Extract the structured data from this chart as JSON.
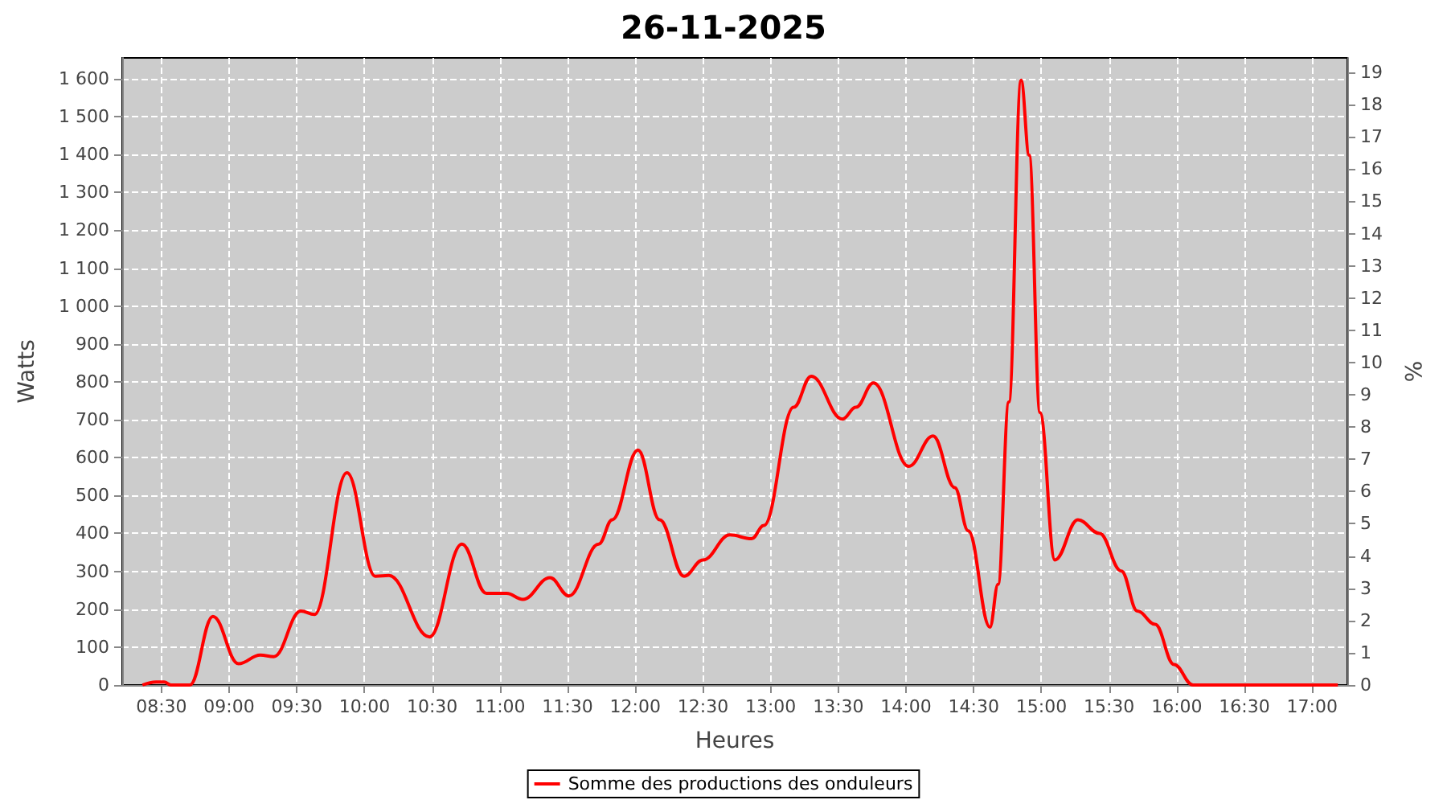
{
  "chart_data": {
    "type": "line",
    "title": "26-11-2025",
    "xlabel": "Heures",
    "ylabel": "Watts",
    "y2label": "%",
    "xlim": [
      8.21,
      17.26
    ],
    "ylim": [
      0,
      1655
    ],
    "y2lim": [
      0,
      19.45
    ],
    "xticks": [
      {
        "value": 8.5,
        "label": "08:30"
      },
      {
        "value": 9,
        "label": "09:00"
      },
      {
        "value": 9.5,
        "label": "09:30"
      },
      {
        "value": 10,
        "label": "10:00"
      },
      {
        "value": 10.5,
        "label": "10:30"
      },
      {
        "value": 11,
        "label": "11:00"
      },
      {
        "value": 11.5,
        "label": "11:30"
      },
      {
        "value": 12,
        "label": "12:00"
      },
      {
        "value": 12.5,
        "label": "12:30"
      },
      {
        "value": 13,
        "label": "13:00"
      },
      {
        "value": 13.5,
        "label": "13:30"
      },
      {
        "value": 14,
        "label": "14:00"
      },
      {
        "value": 14.5,
        "label": "14:30"
      },
      {
        "value": 15,
        "label": "15:00"
      },
      {
        "value": 15.5,
        "label": "15:30"
      },
      {
        "value": 16,
        "label": "16:00"
      },
      {
        "value": 16.5,
        "label": "16:30"
      },
      {
        "value": 17,
        "label": "17:00"
      }
    ],
    "yticks": [
      0,
      100,
      200,
      300,
      400,
      500,
      600,
      700,
      800,
      900,
      {
        "value": 1000,
        "label": "1 000"
      },
      {
        "value": 1100,
        "label": "1 100"
      },
      {
        "value": 1200,
        "label": "1 200"
      },
      {
        "value": 1300,
        "label": "1 300"
      },
      {
        "value": 1400,
        "label": "1 400"
      },
      {
        "value": 1500,
        "label": "1 500"
      },
      {
        "value": 1600,
        "label": "1 600"
      }
    ],
    "y2ticks": [
      0,
      1,
      2,
      3,
      4,
      5,
      6,
      7,
      8,
      9,
      10,
      11,
      12,
      13,
      14,
      15,
      16,
      17,
      18,
      19
    ],
    "grid": true,
    "legend": "bottom",
    "marker": "none",
    "line_style": "solid",
    "series": [
      {
        "name": "Somme des productions des onduleurs",
        "color": "#ff0000",
        "x": [
          8.36,
          8.46,
          8.52,
          8.57,
          8.71,
          8.88,
          9.07,
          9.23,
          9.33,
          9.53,
          9.63,
          9.87,
          10.08,
          10.18,
          10.48,
          10.72,
          10.9,
          11.05,
          11.17,
          11.37,
          11.51,
          11.73,
          11.83,
          12.02,
          12.18,
          12.36,
          12.5,
          12.7,
          12.86,
          12.95,
          13.17,
          13.3,
          13.53,
          13.63,
          13.76,
          14.02,
          14.2,
          14.36,
          14.46,
          14.62,
          14.68,
          14.76,
          14.85,
          14.91,
          14.99,
          15.1,
          15.27,
          15.43,
          15.59,
          15.71,
          15.84,
          15.98,
          16.12,
          17.19
        ],
        "values": [
          0,
          8,
          8,
          0,
          0,
          181,
          56,
          79,
          75,
          195,
          186,
          560,
          287,
          289,
          127,
          372,
          242,
          242,
          226,
          283,
          235,
          372,
          436,
          620,
          436,
          287,
          330,
          396,
          386,
          421,
          733,
          815,
          702,
          733,
          797,
          577,
          657,
          521,
          407,
          153,
          266,
          747,
          1596,
          1398,
          719,
          330,
          436,
          400,
          301,
          195,
          160,
          54,
          0,
          0
        ]
      }
    ]
  }
}
